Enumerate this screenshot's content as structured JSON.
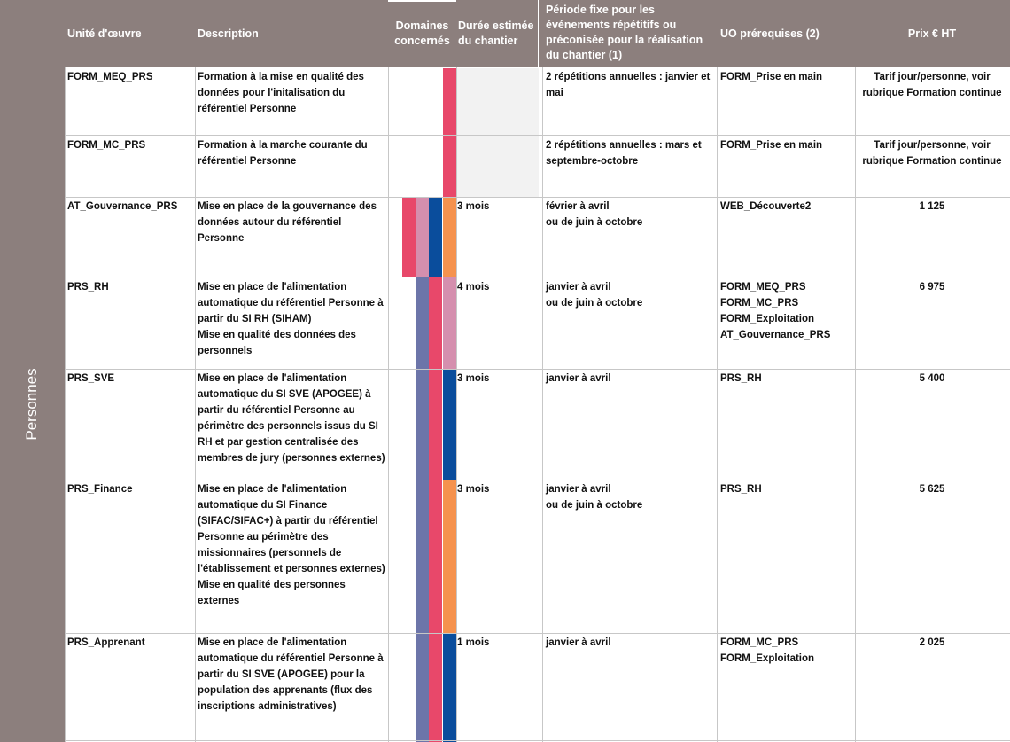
{
  "colors": {
    "header_bg": "#8c7f7d",
    "pink_red": "#e8486a",
    "rose": "#d58fae",
    "indigo": "#6c75a9",
    "navy": "#0a4d9c",
    "orange": "#f5924e"
  },
  "header": {
    "unit": "Unité d'œuvre",
    "desc": "Description",
    "domains": "Domaines concernés",
    "duration": "Durée estimée du chantier",
    "period": "Période fixe pour les événements répétitifs ou préconisée pour la réalisation du chantier (1)",
    "prereq": "UO prérequises (2)",
    "price": "Prix  € HT"
  },
  "category": "Personnes",
  "rows": [
    {
      "unit": "FORM_MEQ_PRS",
      "desc": "Formation à la mise en qualité des données pour l'initalisation du référentiel Personne",
      "duration": "",
      "period": "2 répétitions annuelles : janvier et mai",
      "prereq": "FORM_Prise en main",
      "price": "Tarif jour/personne, voir rubrique Formation continue"
    },
    {
      "unit": "FORM_MC_PRS",
      "desc": "Formation à la marche courante du référentiel Personne",
      "duration": "",
      "period": "2 répétitions annuelles : mars et septembre-octobre",
      "prereq": "FORM_Prise en main",
      "price": "Tarif jour/personne, voir rubrique Formation continue"
    },
    {
      "unit": "AT_Gouvernance_PRS",
      "desc": "Mise en place de la gouvernance des données autour du référentiel Personne",
      "duration": "3 mois",
      "period": "février à avril\nou de juin à octobre",
      "prereq": "WEB_Découverte2",
      "price": "1 125"
    },
    {
      "unit": "PRS_RH",
      "desc": "Mise en place de l'alimentation automatique du référentiel Personne à partir du SI RH (SIHAM)\nMise en qualité des données des personnels",
      "duration": "4 mois",
      "period": "janvier à avril\nou de juin à octobre",
      "prereq": "FORM_MEQ_PRS\nFORM_MC_PRS\nFORM_Exploitation\nAT_Gouvernance_PRS",
      "price": "6 975"
    },
    {
      "unit": "PRS_SVE",
      "desc": "Mise en place de l'alimentation automatique du SI SVE (APOGEE) à partir du référentiel Personne au périmètre des personnels issus du SI RH et par gestion centralisée des membres de jury (personnes externes)",
      "duration": "3 mois",
      "period": "janvier à avril",
      "prereq": "PRS_RH",
      "price": "5 400"
    },
    {
      "unit": "PRS_Finance",
      "desc": "Mise en place de l'alimentation automatique du SI Finance (SIFAC/SIFAC+) à partir du référentiel Personne au périmètre des missionnaires (personnels de l'établissement et personnes externes)\nMise en qualité des personnes externes",
      "duration": "3 mois",
      "period": "janvier à avril\nou de juin à octobre",
      "prereq": "PRS_RH",
      "price": "5 625"
    },
    {
      "unit": "PRS_Apprenant",
      "desc": "Mise en place de l'alimentation automatique du référentiel Personne à partir du SI SVE (APOGEE) pour la population des apprenants (flux des inscriptions administratives)",
      "duration": "1 mois",
      "period": "janvier à avril",
      "prereq": "FORM_MC_PRS\nFORM_Exploitation",
      "price": "2 025"
    }
  ]
}
